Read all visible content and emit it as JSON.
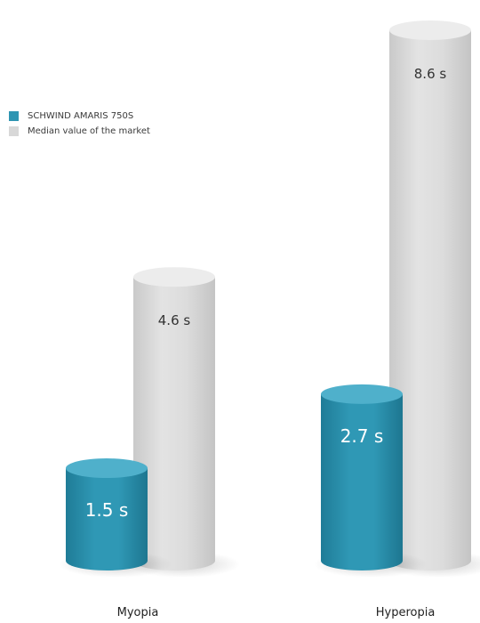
{
  "chart_data": {
    "type": "bar",
    "title": "",
    "xlabel": "",
    "ylabel": "",
    "categories": [
      "Myopia",
      "Hyperopia"
    ],
    "series": [
      {
        "name": "SCHWIND AMARIS 750S",
        "values": [
          1.5,
          2.7
        ],
        "labels": [
          "1.5 s",
          "2.7 s"
        ],
        "color": "#2f95b2"
      },
      {
        "name": "Median value of the market",
        "values": [
          4.6,
          8.6
        ],
        "labels": [
          "4.6 s",
          "8.6 s"
        ],
        "color": "#d8d8d8"
      }
    ],
    "ylim": [
      0,
      9
    ],
    "grid": false,
    "legend_position": "top-left",
    "bar_shape": "cylinder"
  }
}
